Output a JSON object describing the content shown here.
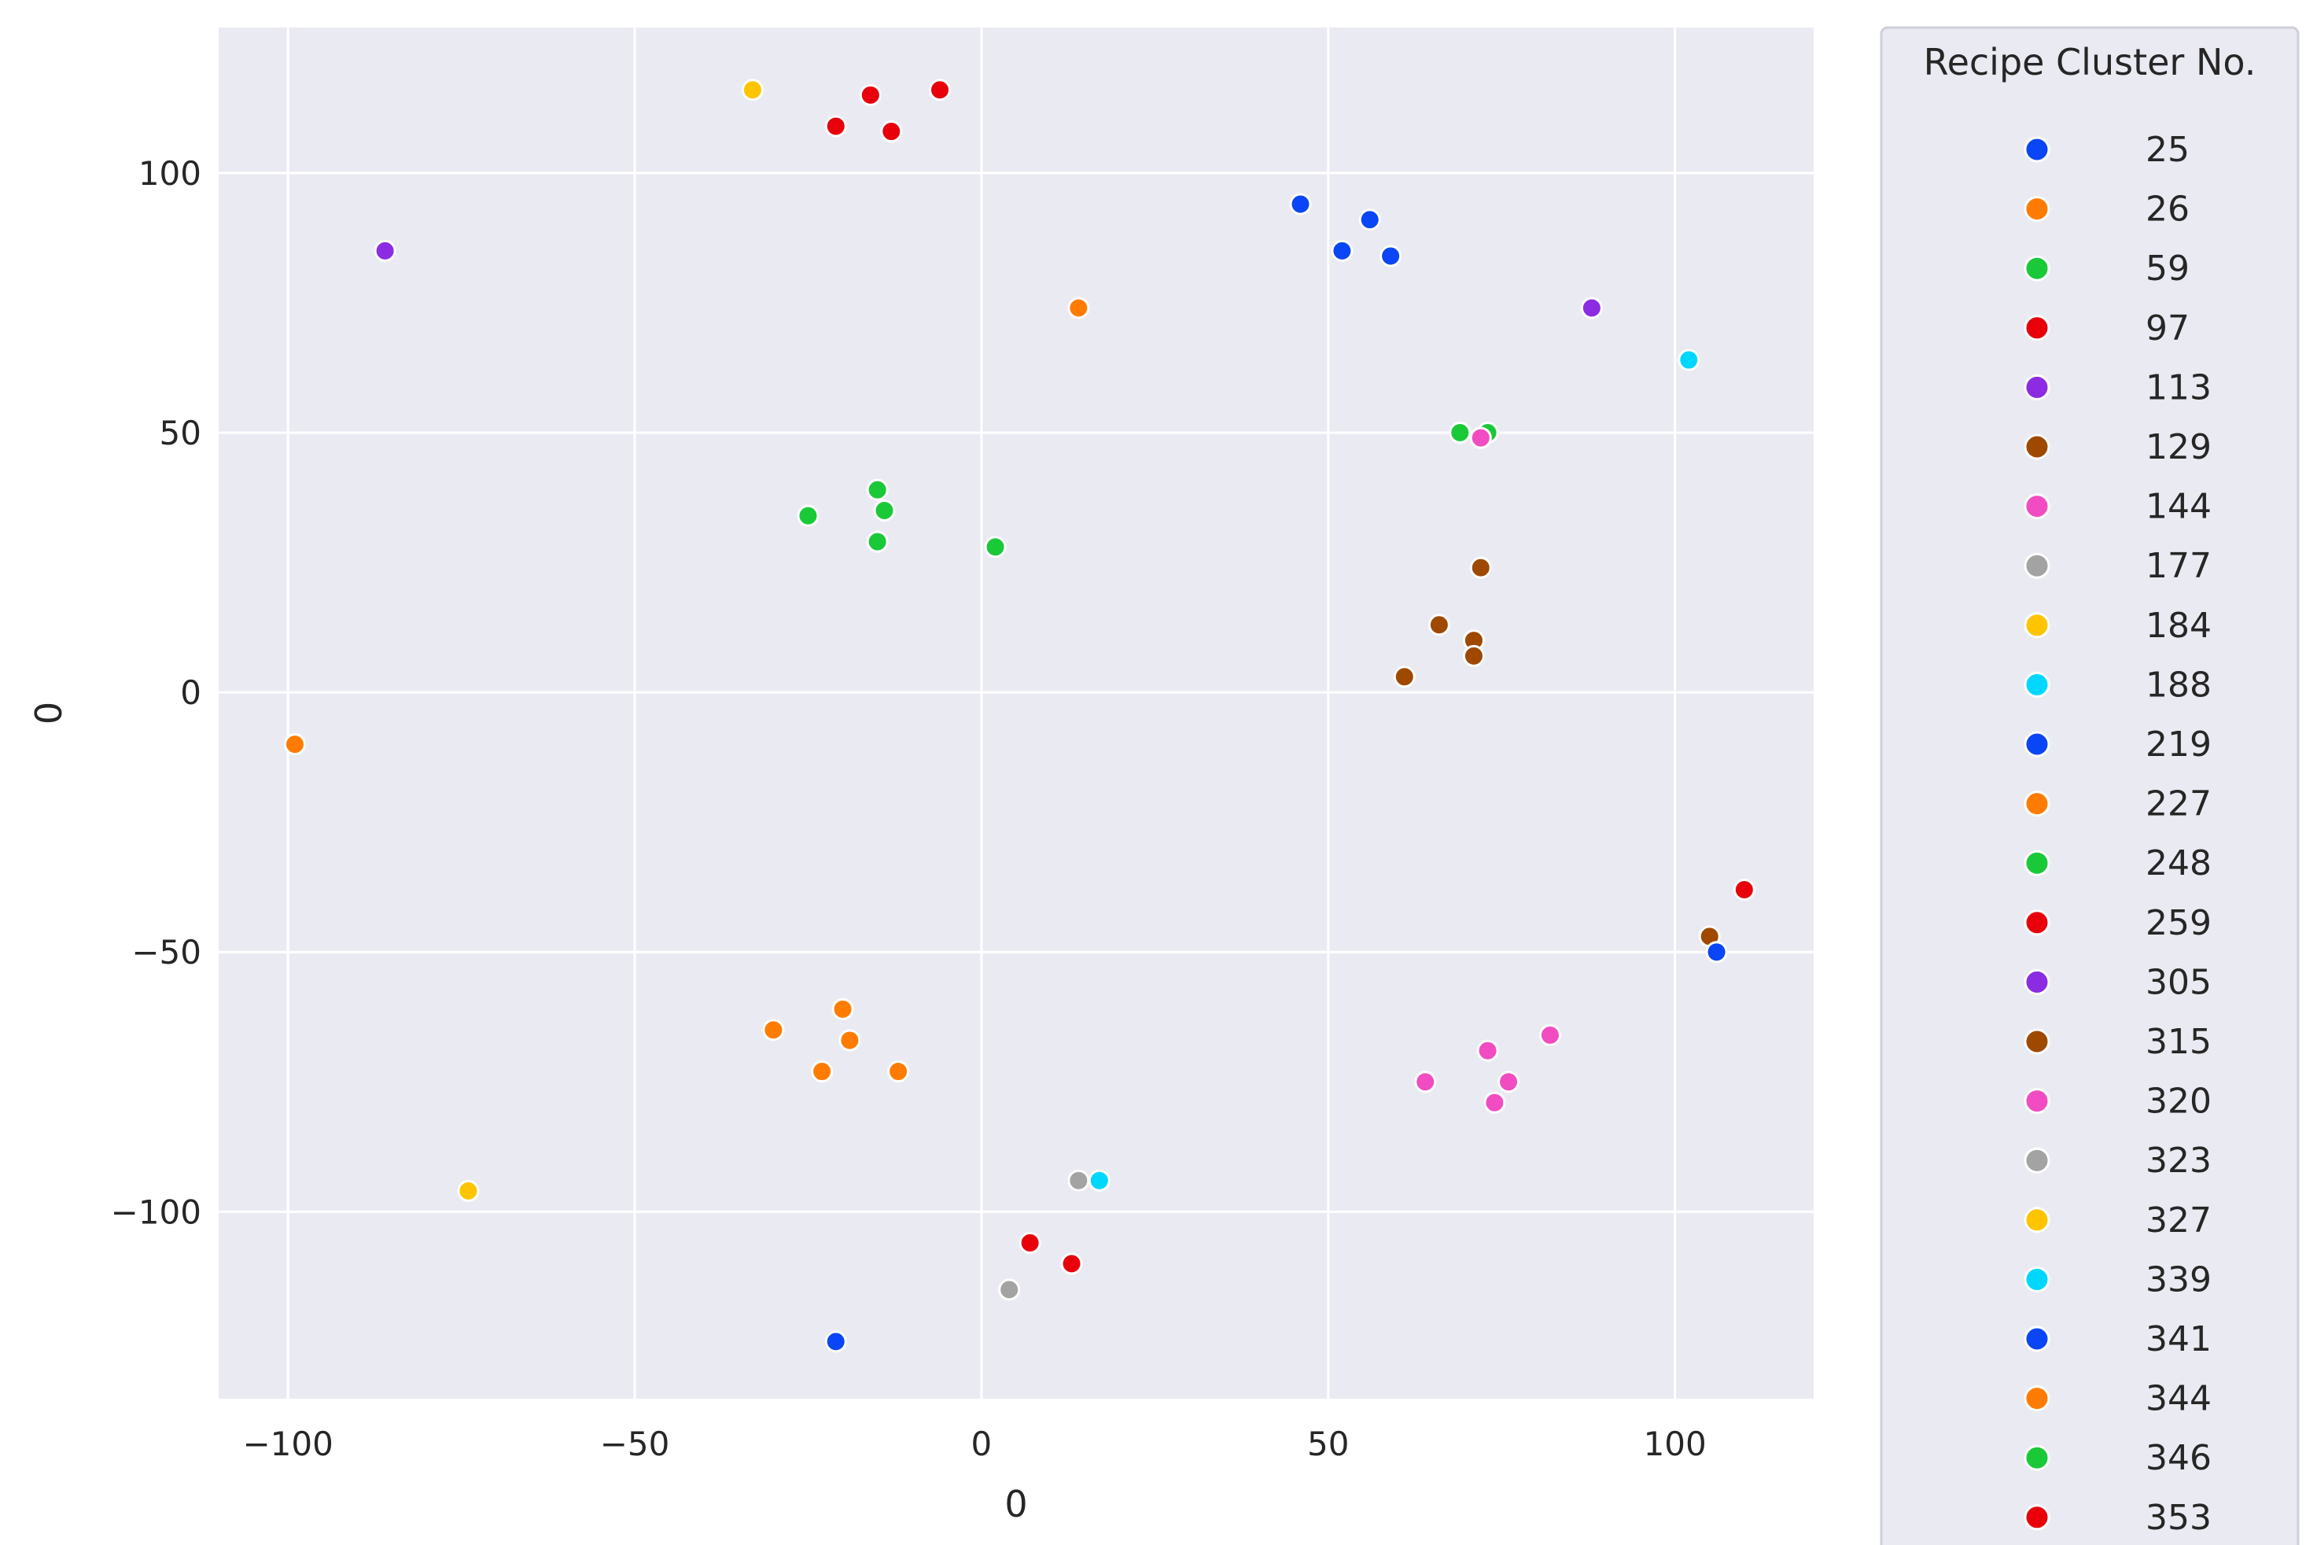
{
  "chart_data": {
    "type": "scatter",
    "title": "",
    "xlabel": "0",
    "ylabel": "0",
    "xlim": [
      -110,
      120
    ],
    "ylim": [
      -136,
      128
    ],
    "x_ticks": [
      -100,
      -50,
      0,
      50,
      100
    ],
    "y_ticks": [
      -100,
      -50,
      0,
      50,
      100
    ],
    "x_tick_labels": [
      "−100",
      "−50",
      "0",
      "50",
      "100"
    ],
    "y_tick_labels": [
      "−100",
      "−50",
      "0",
      "50",
      "100"
    ],
    "grid": true,
    "legend": {
      "title": "Recipe Cluster No.",
      "position": "outside-right"
    },
    "series": [
      {
        "name": "25",
        "color": "#0a46f5",
        "points": [
          [
            46,
            94
          ]
        ]
      },
      {
        "name": "26",
        "color": "#ff7c00",
        "points": [
          [
            14,
            74
          ]
        ]
      },
      {
        "name": "59",
        "color": "#1ac938",
        "points": [
          [
            69,
            50
          ],
          [
            73,
            50
          ]
        ]
      },
      {
        "name": "97",
        "color": "#e8000b",
        "points": [
          [
            -21,
            109
          ],
          [
            -16,
            115
          ],
          [
            -13,
            108
          ],
          [
            -6,
            116
          ]
        ]
      },
      {
        "name": "113",
        "color": "#8b2be2",
        "points": [
          [
            -86,
            85
          ]
        ]
      },
      {
        "name": "129",
        "color": "#9f4800",
        "points": [
          [
            72,
            24
          ],
          [
            66,
            13
          ],
          [
            71,
            10
          ],
          [
            71,
            7
          ],
          [
            61,
            3
          ]
        ]
      },
      {
        "name": "144",
        "color": "#f14cc1",
        "points": [
          [
            72,
            49
          ]
        ]
      },
      {
        "name": "177",
        "color": "#a3a3a3",
        "points": [
          [
            4,
            -115
          ]
        ]
      },
      {
        "name": "184",
        "color": "#ffc400",
        "points": [
          [
            -33,
            116
          ]
        ]
      },
      {
        "name": "188",
        "color": "#00d7ff",
        "points": [
          [
            102,
            64
          ]
        ]
      },
      {
        "name": "219",
        "color": "#0a46f5",
        "points": [
          [
            52,
            85
          ],
          [
            56,
            91
          ],
          [
            59,
            84
          ]
        ]
      },
      {
        "name": "227",
        "color": "#ff7c00",
        "points": [
          [
            -99,
            -10
          ]
        ]
      },
      {
        "name": "248",
        "color": "#1ac938",
        "points": [
          [
            -25,
            34
          ],
          [
            -15,
            39
          ],
          [
            -14,
            35
          ],
          [
            -15,
            29
          ],
          [
            2,
            28
          ]
        ]
      },
      {
        "name": "259",
        "color": "#e8000b",
        "points": [
          [
            110,
            -38
          ]
        ]
      },
      {
        "name": "305",
        "color": "#8b2be2",
        "points": [
          [
            88,
            74
          ]
        ]
      },
      {
        "name": "315",
        "color": "#9f4800",
        "points": [
          [
            105,
            -47
          ]
        ]
      },
      {
        "name": "320",
        "color": "#f14cc1",
        "points": [
          [
            73,
            -69
          ],
          [
            82,
            -66
          ],
          [
            64,
            -75
          ],
          [
            76,
            -75
          ],
          [
            74,
            -79
          ]
        ]
      },
      {
        "name": "323",
        "color": "#a3a3a3",
        "points": [
          [
            14,
            -94
          ]
        ]
      },
      {
        "name": "327",
        "color": "#ffc400",
        "points": [
          [
            -74,
            -96
          ]
        ]
      },
      {
        "name": "339",
        "color": "#00d7ff",
        "points": [
          [
            17,
            -94
          ]
        ]
      },
      {
        "name": "341",
        "color": "#0a46f5",
        "points": [
          [
            106,
            -50
          ],
          [
            -21,
            -125
          ]
        ]
      },
      {
        "name": "344",
        "color": "#ff7c00",
        "points": [
          [
            -30,
            -65
          ],
          [
            -20,
            -61
          ],
          [
            -19,
            -67
          ],
          [
            -23,
            -73
          ],
          [
            -12,
            -73
          ]
        ]
      },
      {
        "name": "346",
        "color": "#1ac938",
        "points": []
      },
      {
        "name": "353",
        "color": "#e8000b",
        "points": [
          [
            7,
            -106
          ],
          [
            13,
            -110
          ]
        ]
      }
    ]
  }
}
